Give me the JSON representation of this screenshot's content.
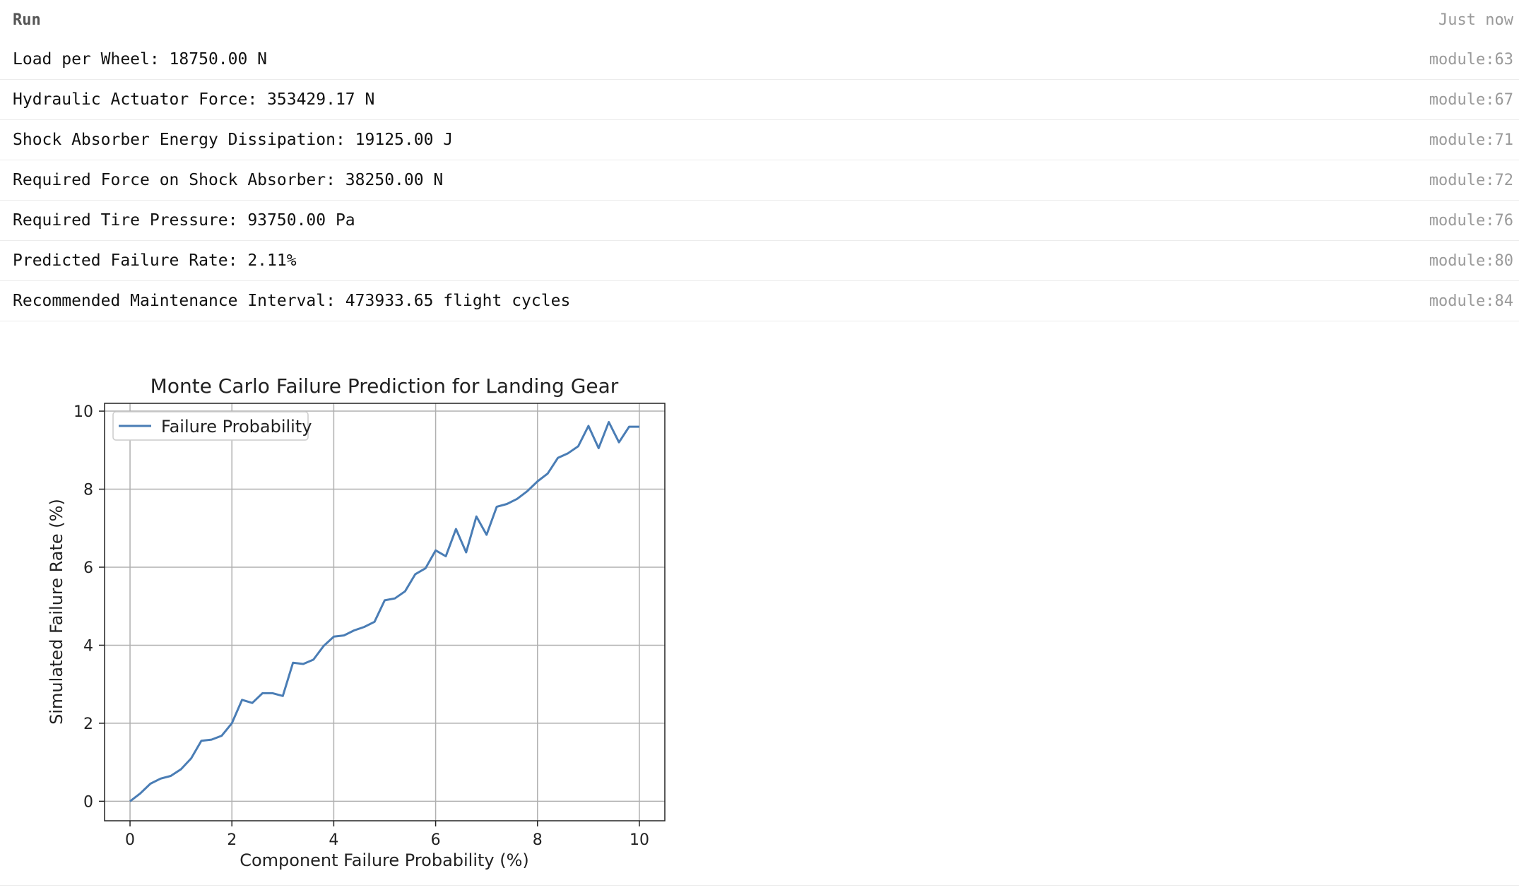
{
  "run": {
    "title": "Run",
    "time": "Just now"
  },
  "logs": [
    {
      "message": "Load per Wheel: 18750.00 N",
      "source": "module:63"
    },
    {
      "message": "Hydraulic Actuator Force: 353429.17 N",
      "source": "module:67"
    },
    {
      "message": "Shock Absorber Energy Dissipation: 19125.00 J",
      "source": "module:71"
    },
    {
      "message": "Required Force on Shock Absorber: 38250.00 N",
      "source": "module:72"
    },
    {
      "message": "Required Tire Pressure: 93750.00 Pa",
      "source": "module:76"
    },
    {
      "message": "Predicted Failure Rate: 2.11%",
      "source": "module:80"
    },
    {
      "message": "Recommended Maintenance Interval: 473933.65 flight cycles",
      "source": "module:84"
    }
  ],
  "chart_data": {
    "type": "line",
    "title": "Monte Carlo Failure Prediction for Landing Gear",
    "xlabel": "Component Failure Probability (%)",
    "ylabel": "Simulated Failure Rate (%)",
    "xlim": [
      -0.5,
      10.5
    ],
    "ylim": [
      -0.5,
      10.2
    ],
    "xticks": [
      0,
      2,
      4,
      6,
      8,
      10
    ],
    "yticks": [
      0,
      2,
      4,
      6,
      8,
      10
    ],
    "grid": true,
    "legend": "top-left",
    "series": [
      {
        "name": "Failure Probability",
        "color": "#4a7db5",
        "x": [
          0.0,
          0.2,
          0.4,
          0.6,
          0.8,
          1.0,
          1.2,
          1.4,
          1.6,
          1.8,
          2.0,
          2.2,
          2.4,
          2.6,
          2.8,
          3.0,
          3.2,
          3.4,
          3.6,
          3.8,
          4.0,
          4.2,
          4.4,
          4.6,
          4.8,
          5.0,
          5.2,
          5.4,
          5.6,
          5.8,
          6.0,
          6.2,
          6.4,
          6.6,
          6.8,
          7.0,
          7.2,
          7.4,
          7.6,
          7.8,
          8.0,
          8.2,
          8.4,
          8.6,
          8.8,
          9.0,
          9.2,
          9.4,
          9.6,
          9.8,
          10.0
        ],
        "y": [
          0.0,
          0.2,
          0.45,
          0.58,
          0.65,
          0.82,
          1.1,
          1.55,
          1.58,
          1.68,
          2.0,
          2.6,
          2.52,
          2.77,
          2.77,
          2.7,
          3.55,
          3.52,
          3.63,
          3.98,
          4.22,
          4.25,
          4.38,
          4.47,
          4.6,
          5.15,
          5.2,
          5.38,
          5.82,
          5.97,
          6.43,
          6.28,
          6.98,
          6.38,
          7.3,
          6.83,
          7.55,
          7.62,
          7.75,
          7.95,
          8.2,
          8.4,
          8.8,
          8.92,
          9.1,
          9.62,
          9.05,
          9.72,
          9.2,
          9.6,
          9.6
        ]
      }
    ]
  }
}
